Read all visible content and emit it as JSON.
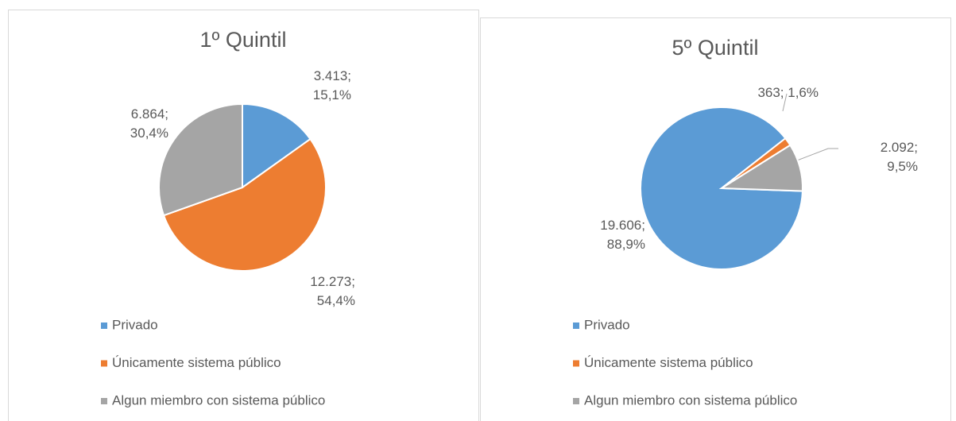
{
  "chart_data": [
    {
      "type": "pie",
      "title": "1º Quintil",
      "categories": [
        "Privado",
        "Únicamente sistema público",
        "Algun miembro con sistema público"
      ],
      "values": [
        3413,
        12273,
        6864
      ],
      "value_labels": [
        "3.413; 15,1%",
        "12.273; 54,4%",
        "6.864; 30,4%"
      ],
      "colors": [
        "#5b9bd5",
        "#ed7d31",
        "#a5a5a5"
      ],
      "legend": "bottom"
    },
    {
      "type": "pie",
      "title": "5º Quintil",
      "categories": [
        "Privado",
        "Únicamente sistema público",
        "Algun miembro con sistema público"
      ],
      "values": [
        19606,
        363,
        2092
      ],
      "value_labels": [
        "19.606; 88,9%",
        "363; 1,6%",
        "2.092; 9,5%"
      ],
      "colors": [
        "#5b9bd5",
        "#ed7d31",
        "#a5a5a5"
      ],
      "legend": "bottom"
    }
  ]
}
